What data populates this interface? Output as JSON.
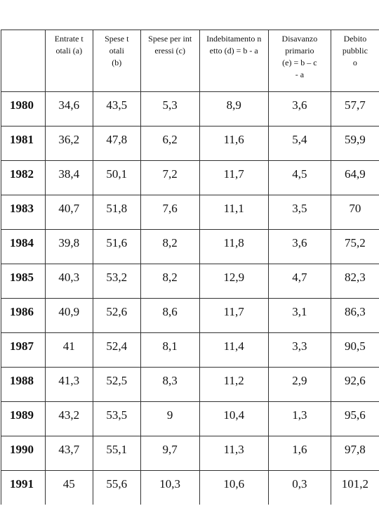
{
  "table": {
    "headers": [
      "",
      "Entrate totali (a)",
      "Spese totali (b)",
      "Spese per interessi (c)",
      "Indebitamento netto (d) = b - a",
      "Disavanzo primario (e) = b – c - a",
      "Debito pubblico"
    ],
    "rows": [
      [
        "1980",
        "34,6",
        "43,5",
        "5,3",
        "8,9",
        "3,6",
        "57,7"
      ],
      [
        "1981",
        "36,2",
        "47,8",
        "6,2",
        "11,6",
        "5,4",
        "59,9"
      ],
      [
        "1982",
        "38,4",
        "50,1",
        "7,2",
        "11,7",
        "4,5",
        "64,9"
      ],
      [
        "1983",
        "40,7",
        "51,8",
        "7,6",
        "11,1",
        "3,5",
        "70"
      ],
      [
        "1984",
        "39,8",
        "51,6",
        "8,2",
        "11,8",
        "3,6",
        "75,2"
      ],
      [
        "1985",
        "40,3",
        "53,2",
        "8,2",
        "12,9",
        "4,7",
        "82,3"
      ],
      [
        "1986",
        "40,9",
        "52,6",
        "8,6",
        "11,7",
        "3,1",
        "86,3"
      ],
      [
        "1987",
        "41",
        "52,4",
        "8,1",
        "11,4",
        "3,3",
        "90,5"
      ],
      [
        "1988",
        "41,3",
        "52,5",
        "8,3",
        "11,2",
        "2,9",
        "92,6"
      ],
      [
        "1989",
        "43,2",
        "53,5",
        "9",
        "10,4",
        "1,3",
        "95,6"
      ],
      [
        "1990",
        "43,7",
        "55,1",
        "9,7",
        "11,3",
        "1,6",
        "97,8"
      ],
      [
        "1991",
        "45",
        "55,6",
        "10,3",
        "10,6",
        "0,3",
        "101,2"
      ]
    ]
  }
}
